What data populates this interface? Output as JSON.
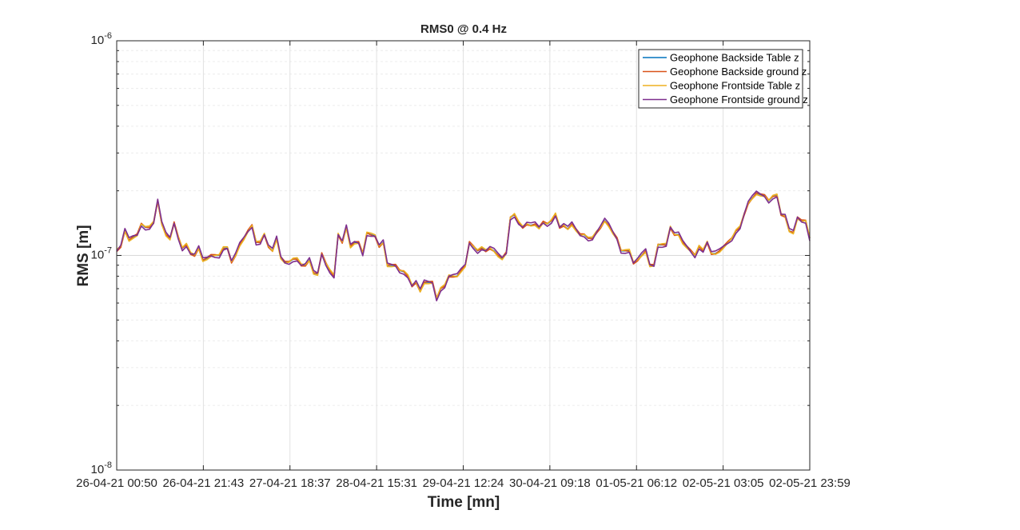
{
  "chart_data": {
    "type": "line",
    "title": "RMS0 @ 0.4 Hz",
    "xlabel": "Time [mn]",
    "ylabel": "RMS [m]",
    "yscale": "log",
    "ylim": [
      1e-08,
      1e-06
    ],
    "grid": true,
    "legend_position": "top-right",
    "xtick_labels": [
      "26-04-21 00:50",
      "26-04-21 21:43",
      "27-04-21 18:37",
      "28-04-21 15:31",
      "29-04-21 12:24",
      "30-04-21 09:18",
      "01-05-21 06:12",
      "02-05-21 03:05",
      "02-05-21 23:59"
    ],
    "ytick_labels": [
      {
        "base": "10",
        "exp": "-6"
      },
      {
        "base": "10",
        "exp": "-7"
      },
      {
        "base": "10",
        "exp": "-8"
      }
    ],
    "x_start": "26-04-21 00:50",
    "x_end": "02-05-21 23:59",
    "series": [
      {
        "name": "Geophone Backside Table z",
        "color": "#0072BD",
        "offset": 0
      },
      {
        "name": "Geophone Backside ground z",
        "color": "#D95319",
        "offset": -0.004
      },
      {
        "name": "Geophone Frontside Table z",
        "color": "#EDB120",
        "offset": 0.007
      },
      {
        "name": "Geophone Frontside ground z",
        "color": "#7E2F8E",
        "offset": -0.012
      }
    ],
    "base_values_e-7": [
      1.05,
      1.1,
      1.3,
      1.18,
      1.22,
      1.25,
      1.4,
      1.35,
      1.35,
      1.42,
      1.8,
      1.4,
      1.25,
      1.2,
      1.42,
      1.22,
      1.08,
      1.12,
      1.02,
      1.0,
      1.08,
      0.95,
      0.97,
      1.0,
      1.0,
      1.0,
      1.08,
      1.08,
      0.93,
      1.0,
      1.12,
      1.2,
      1.3,
      1.38,
      1.15,
      1.15,
      1.25,
      1.1,
      1.05,
      1.2,
      0.98,
      0.93,
      0.93,
      0.96,
      0.96,
      0.9,
      0.9,
      0.95,
      0.83,
      0.82,
      1.02,
      0.92,
      0.85,
      0.8,
      1.25,
      1.15,
      1.35,
      1.1,
      1.15,
      1.15,
      1.02,
      1.27,
      1.25,
      1.23,
      1.1,
      1.15,
      0.9,
      0.9,
      0.9,
      0.85,
      0.84,
      0.8,
      0.72,
      0.75,
      0.68,
      0.75,
      0.75,
      0.75,
      0.63,
      0.7,
      0.72,
      0.8,
      0.8,
      0.8,
      0.85,
      0.9,
      1.15,
      1.1,
      1.05,
      1.08,
      1.05,
      1.08,
      1.05,
      1.0,
      0.97,
      1.03,
      1.5,
      1.55,
      1.42,
      1.35,
      1.4,
      1.38,
      1.4,
      1.35,
      1.43,
      1.4,
      1.45,
      1.55,
      1.35,
      1.38,
      1.33,
      1.4,
      1.32,
      1.25,
      1.25,
      1.2,
      1.2,
      1.28,
      1.35,
      1.45,
      1.38,
      1.28,
      1.2,
      1.05,
      1.05,
      1.05,
      0.92,
      0.95,
      1.0,
      1.05,
      0.9,
      0.9,
      1.12,
      1.12,
      1.12,
      1.35,
      1.25,
      1.25,
      1.15,
      1.1,
      1.05,
      1.0,
      1.1,
      1.05,
      1.15,
      1.02,
      1.02,
      1.05,
      1.1,
      1.15,
      1.2,
      1.3,
      1.35,
      1.55,
      1.75,
      1.85,
      1.95,
      1.92,
      1.9,
      1.8,
      1.88,
      1.9,
      1.55,
      1.52,
      1.3,
      1.28,
      1.5,
      1.45,
      1.45,
      1.2
    ]
  }
}
